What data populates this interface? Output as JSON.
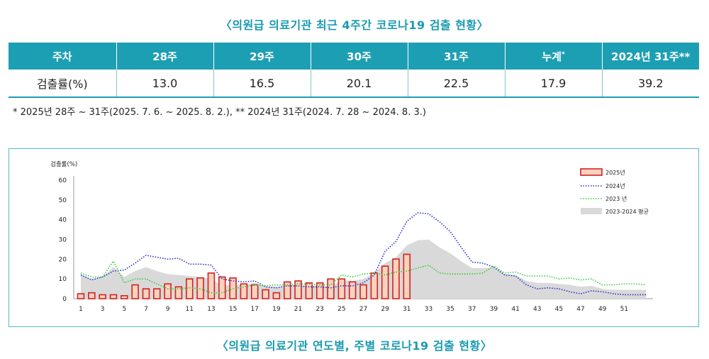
{
  "top_title": "〈의원급 의료기관 최근 4주간 코로나19 검출 현황〉",
  "table": {
    "headers": [
      "주차",
      "28주",
      "29주",
      "30주",
      "31주",
      "누계",
      "2024년 31주**"
    ],
    "header_sup": "*",
    "row_label": "검출률(%)",
    "values": [
      "13.0",
      "16.5",
      "20.1",
      "22.5",
      "17.9",
      "39.2"
    ]
  },
  "footnote": "* 2025년 28주 ~ 31주(2025. 7. 6. ~ 2025. 8. 2.), ** 2024년 31주(2024. 7. 28 ~ 2024. 8. 3.)",
  "bottom_title": "〈의원급 의료기관 연도별, 주별 코로나19 검출 현황〉",
  "colors": {
    "accent": "#1d9fb3",
    "bar_fill": "#fbd3bd",
    "bar_stroke": "#d42020",
    "line_2024": "#2b2bd0",
    "line_2023": "#33cc33",
    "area_avg": "#d9d9d9"
  },
  "chart_data": {
    "type": "bar",
    "ylabel": "검출률(%)",
    "ylim": [
      0,
      60
    ],
    "yticks": [
      0,
      10,
      20,
      30,
      40,
      50,
      60
    ],
    "xlim": [
      1,
      53
    ],
    "xticks": [
      1,
      3,
      5,
      7,
      9,
      11,
      13,
      15,
      17,
      19,
      21,
      23,
      25,
      27,
      29,
      31,
      33,
      35,
      37,
      39,
      41,
      43,
      45,
      47,
      49,
      51
    ],
    "legend_position": "top-right",
    "series": [
      {
        "name": "2025년",
        "kind": "bar",
        "x": [
          1,
          2,
          3,
          4,
          5,
          6,
          7,
          8,
          9,
          10,
          11,
          12,
          13,
          14,
          15,
          16,
          17,
          18,
          19,
          20,
          21,
          22,
          23,
          24,
          25,
          26,
          27,
          28,
          29,
          30,
          31
        ],
        "values": [
          2.5,
          3,
          2,
          2,
          1.5,
          7,
          5,
          5,
          7.5,
          6,
          10,
          10.5,
          13,
          11,
          10.5,
          7.5,
          7,
          4.5,
          3,
          8.5,
          9,
          8,
          8,
          10,
          10,
          8.5,
          7,
          13,
          16.5,
          20.1,
          22.5
        ]
      },
      {
        "name": "2024년",
        "kind": "line",
        "x": [
          1,
          2,
          3,
          4,
          5,
          6,
          7,
          8,
          9,
          10,
          11,
          12,
          13,
          14,
          15,
          16,
          17,
          18,
          19,
          20,
          21,
          22,
          23,
          24,
          25,
          26,
          27,
          28,
          29,
          30,
          31,
          32,
          33,
          34,
          35,
          36,
          37,
          38,
          39,
          40,
          41,
          42,
          43,
          44,
          45,
          46,
          47,
          48,
          49,
          50,
          51,
          52,
          53
        ],
        "values": [
          12,
          9.5,
          11,
          14,
          14.5,
          18,
          22,
          21,
          20,
          20.5,
          17.5,
          17.5,
          17,
          10,
          9,
          8.5,
          9,
          6,
          5.5,
          6.5,
          6.5,
          6,
          6,
          5.5,
          6.5,
          6.5,
          8,
          12,
          24,
          29,
          39.2,
          43.5,
          43,
          39,
          34,
          26,
          18.5,
          18,
          16,
          12,
          11.5,
          7,
          5,
          5.5,
          5,
          3.5,
          2.5,
          4,
          3.5,
          2.5,
          2,
          2,
          2
        ]
      },
      {
        "name": "2023 년",
        "kind": "line",
        "x": [
          1,
          2,
          3,
          4,
          5,
          6,
          7,
          8,
          9,
          10,
          11,
          12,
          13,
          14,
          15,
          16,
          17,
          18,
          19,
          20,
          21,
          22,
          23,
          24,
          25,
          26,
          27,
          28,
          29,
          30,
          31,
          32,
          33,
          34,
          35,
          36,
          37,
          38,
          39,
          40,
          41,
          42,
          43,
          44,
          45,
          46,
          47,
          48,
          49,
          50,
          51,
          52,
          53
        ],
        "values": [
          13,
          11,
          11,
          19,
          8,
          10,
          10,
          7.5,
          5,
          5,
          5.5,
          5,
          3,
          3,
          5,
          6,
          7,
          6.5,
          7,
          7,
          7.5,
          7.5,
          7,
          7,
          12,
          11,
          12.5,
          13,
          12,
          13.5,
          14,
          15.5,
          17,
          13,
          12.5,
          12.5,
          12.5,
          13,
          16.5,
          13,
          13.5,
          11.5,
          11.5,
          11.5,
          10,
          10.5,
          9.5,
          10,
          7,
          7,
          7.5,
          7.5,
          7
        ]
      },
      {
        "name": "2023-2024 평균",
        "kind": "area",
        "x": [
          1,
          2,
          3,
          4,
          5,
          6,
          7,
          8,
          9,
          10,
          11,
          12,
          13,
          14,
          15,
          16,
          17,
          18,
          19,
          20,
          21,
          22,
          23,
          24,
          25,
          26,
          27,
          28,
          29,
          30,
          31,
          32,
          33,
          34,
          35,
          36,
          37,
          38,
          39,
          40,
          41,
          42,
          43,
          44,
          45,
          46,
          47,
          48,
          49,
          50,
          51,
          52,
          53
        ],
        "values": [
          12.5,
          10,
          11,
          16,
          11,
          14,
          16,
          14,
          12.5,
          12,
          11.5,
          11,
          10,
          6.5,
          7,
          7,
          8,
          6,
          6,
          6.5,
          7,
          6.5,
          6.5,
          6,
          9.5,
          9,
          10,
          13,
          18,
          21,
          27,
          29.5,
          30,
          26,
          23,
          19,
          15.5,
          15.5,
          16,
          12.5,
          12,
          9,
          8,
          8,
          7.5,
          7,
          6,
          6.5,
          5,
          4.5,
          4.5,
          4.5,
          4.5
        ]
      }
    ]
  }
}
